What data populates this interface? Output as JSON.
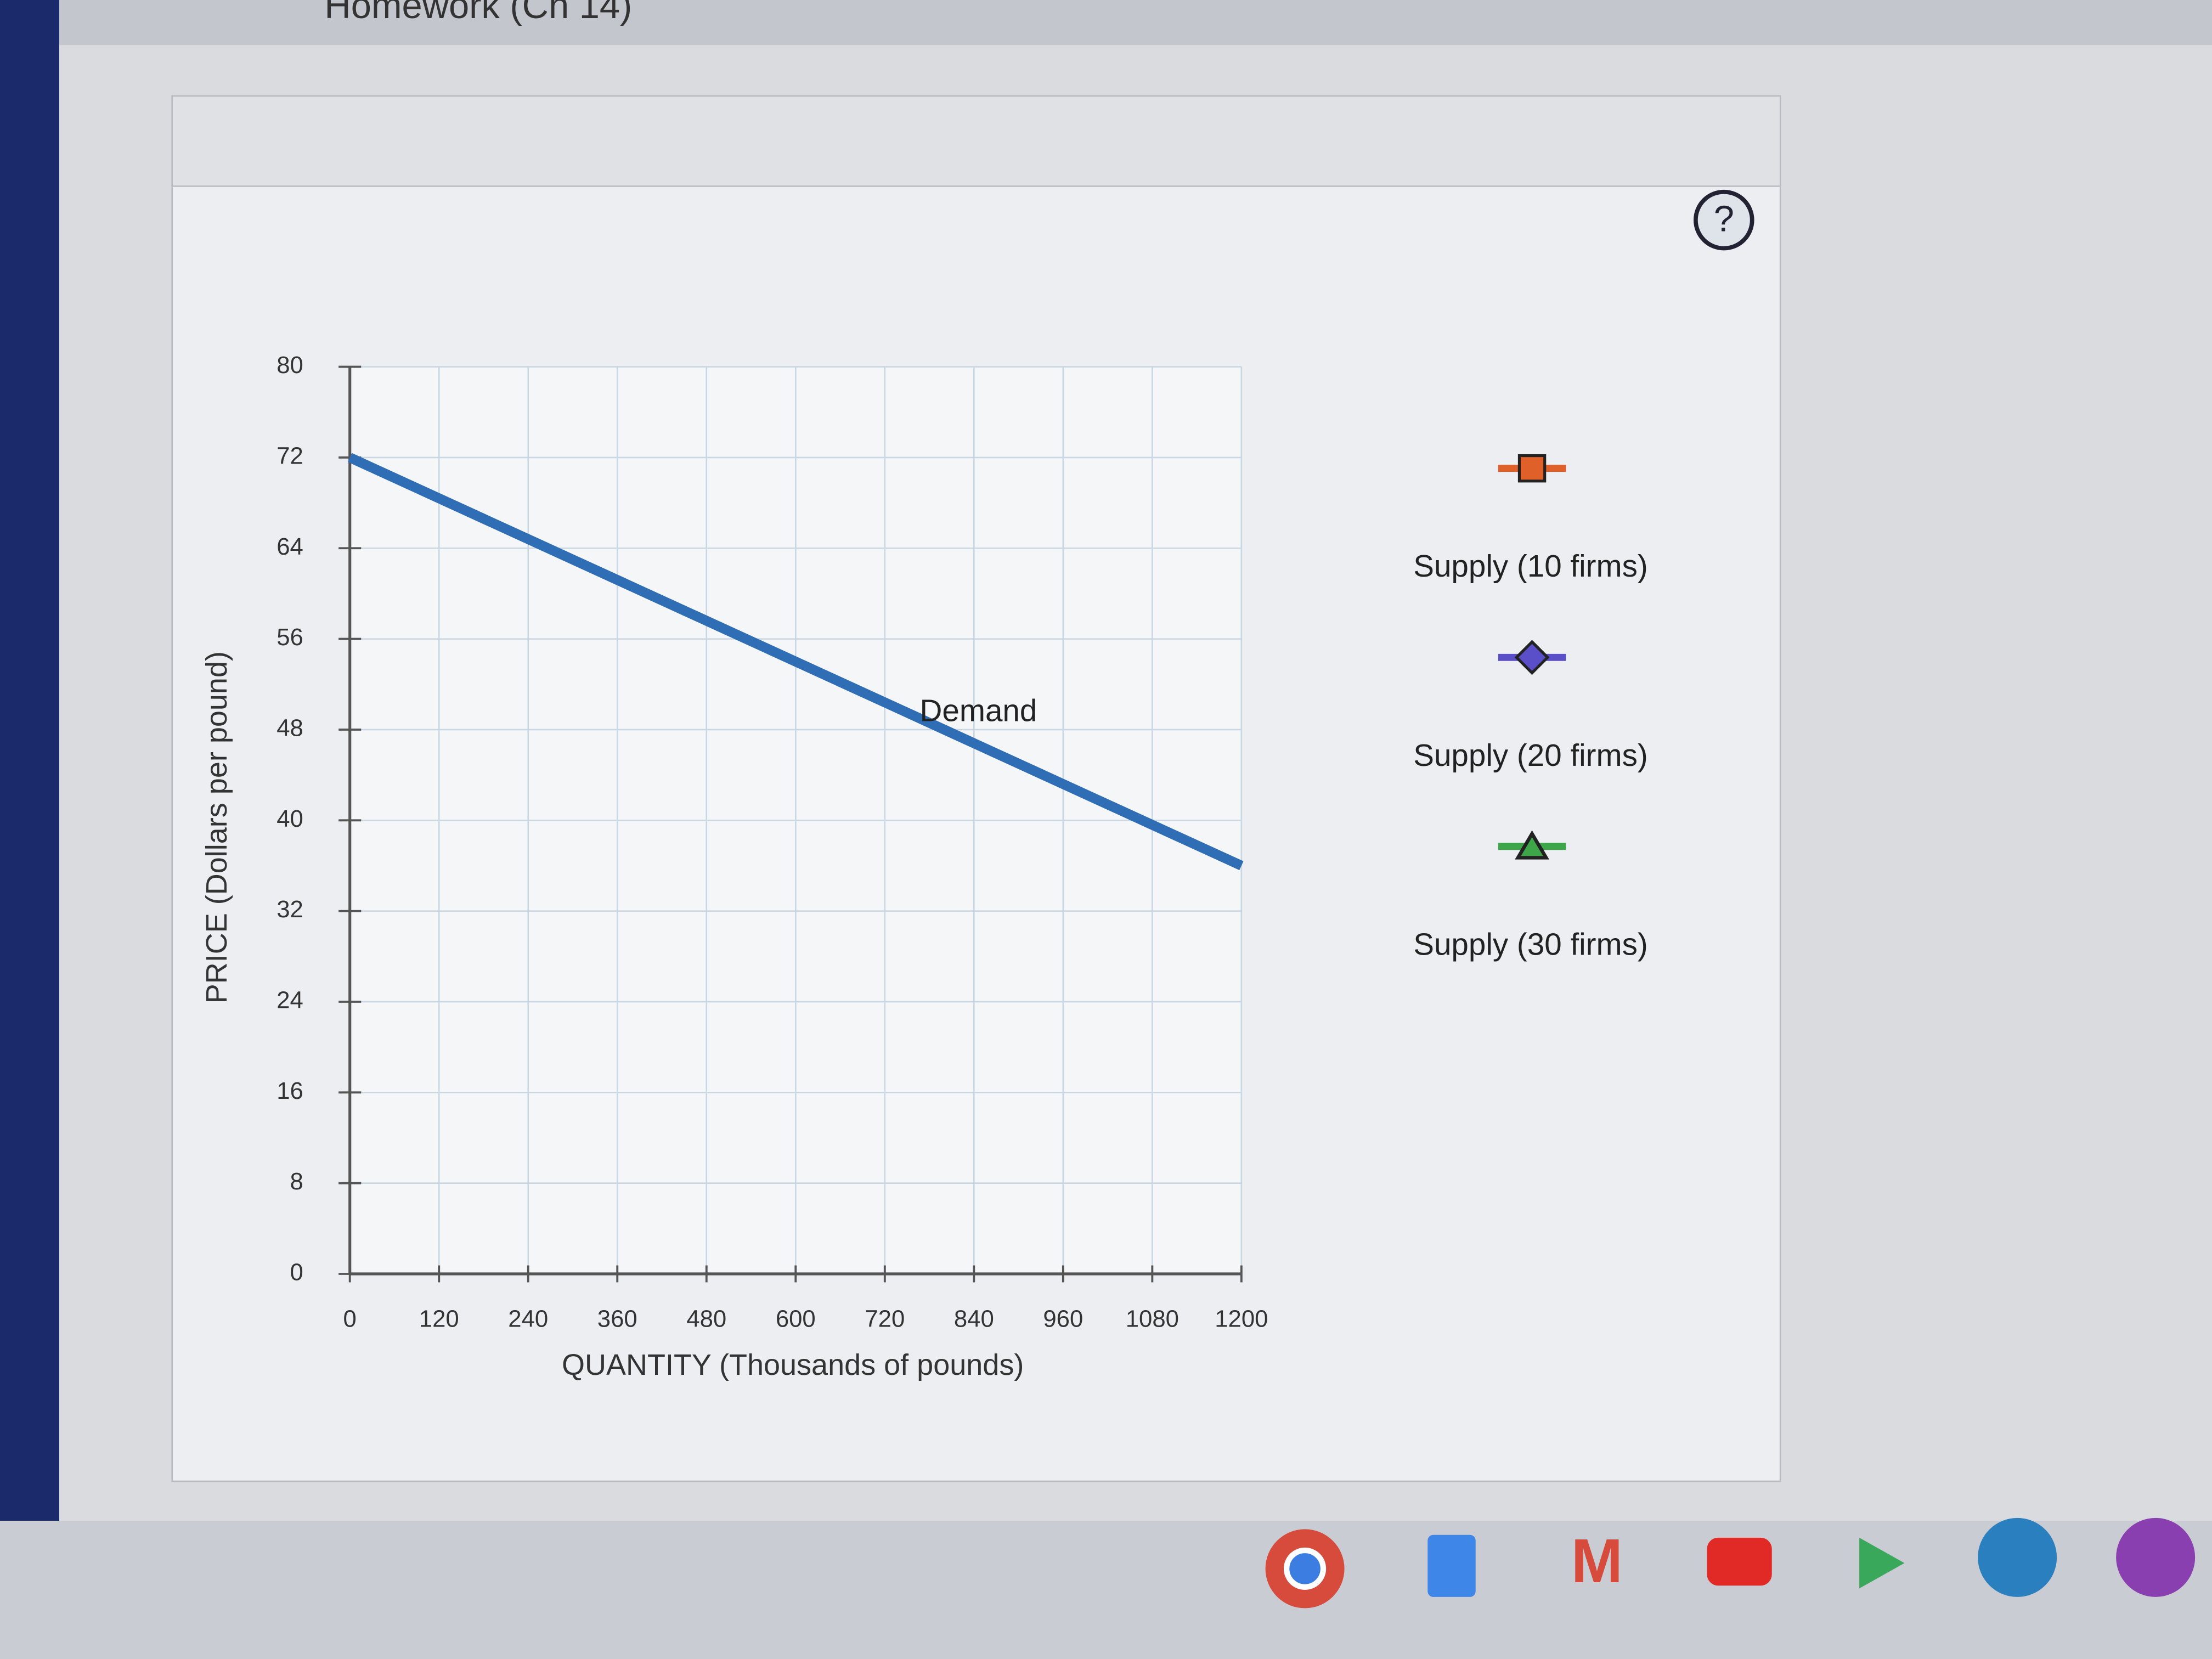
{
  "header": "Homework (Ch 14)",
  "help": "?",
  "chart_data": {
    "type": "line",
    "xlabel": "QUANTITY (Thousands of pounds)",
    "ylabel": "PRICE (Dollars per pound)",
    "xlim": [
      0,
      1200
    ],
    "ylim": [
      0,
      80
    ],
    "xticks": [
      0,
      120,
      240,
      360,
      480,
      600,
      720,
      840,
      960,
      1080,
      1200
    ],
    "yticks": [
      0,
      8,
      16,
      24,
      32,
      40,
      48,
      56,
      64,
      72,
      80
    ],
    "grid": true,
    "series": [
      {
        "name": "Demand",
        "color": "#2f6db5",
        "x": [
          0,
          1200
        ],
        "values": [
          72,
          36
        ]
      },
      {
        "name": "Supply (10 firms)",
        "color": "#e0602a",
        "marker": "square",
        "x": [],
        "values": []
      },
      {
        "name": "Supply (20 firms)",
        "color": "#5b4fc9",
        "marker": "diamond",
        "x": [],
        "values": []
      },
      {
        "name": "Supply (30 firms)",
        "color": "#3ca648",
        "marker": "triangle",
        "x": [],
        "values": []
      }
    ]
  }
}
